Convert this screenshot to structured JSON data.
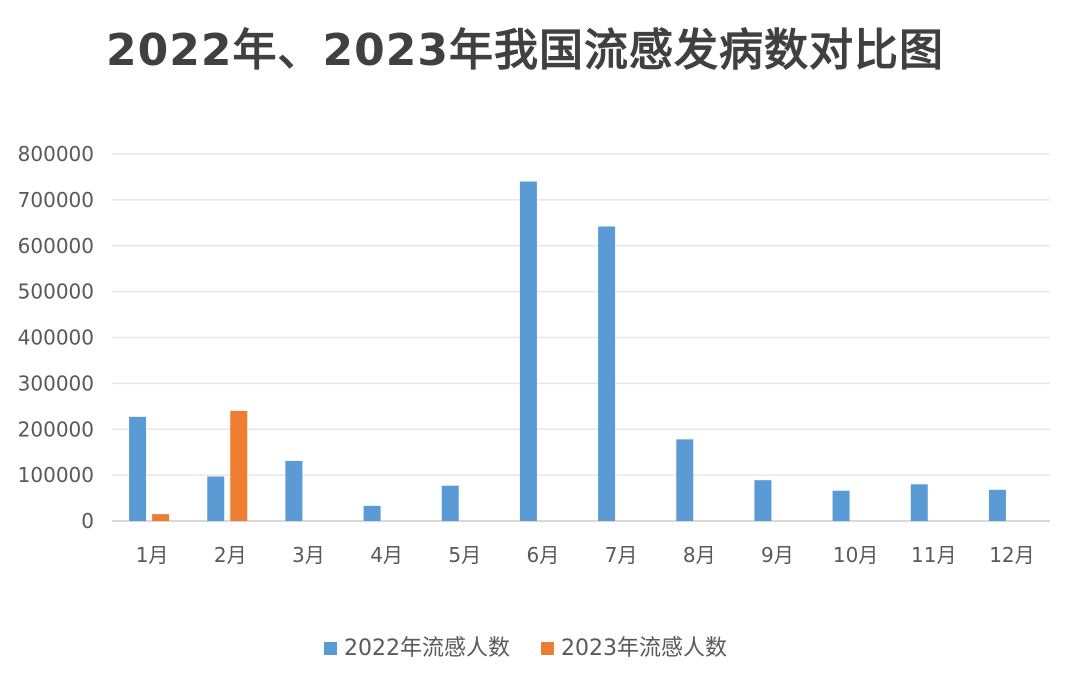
{
  "chart_data": {
    "type": "bar",
    "title": "2022年、2023年我国流感发病数对比图",
    "categories": [
      "1月",
      "2月",
      "3月",
      "4月",
      "5月",
      "6月",
      "7月",
      "8月",
      "9月",
      "10月",
      "11月",
      "12月"
    ],
    "series": [
      {
        "name": "2022年流感人数",
        "color": "#5B9BD5",
        "values": [
          227000,
          97000,
          131000,
          33000,
          77000,
          740000,
          642000,
          178000,
          89000,
          66000,
          80000,
          68000
        ]
      },
      {
        "name": "2023年流感人数",
        "color": "#ED7D31",
        "values": [
          15000,
          240000,
          null,
          null,
          null,
          null,
          null,
          null,
          null,
          null,
          null,
          null
        ]
      }
    ],
    "yticks": [
      "0",
      "100000",
      "200000",
      "300000",
      "400000",
      "500000",
      "600000",
      "700000",
      "800000"
    ],
    "ylim": [
      0,
      800000
    ],
    "grid": true,
    "legend_position": "bottom"
  }
}
